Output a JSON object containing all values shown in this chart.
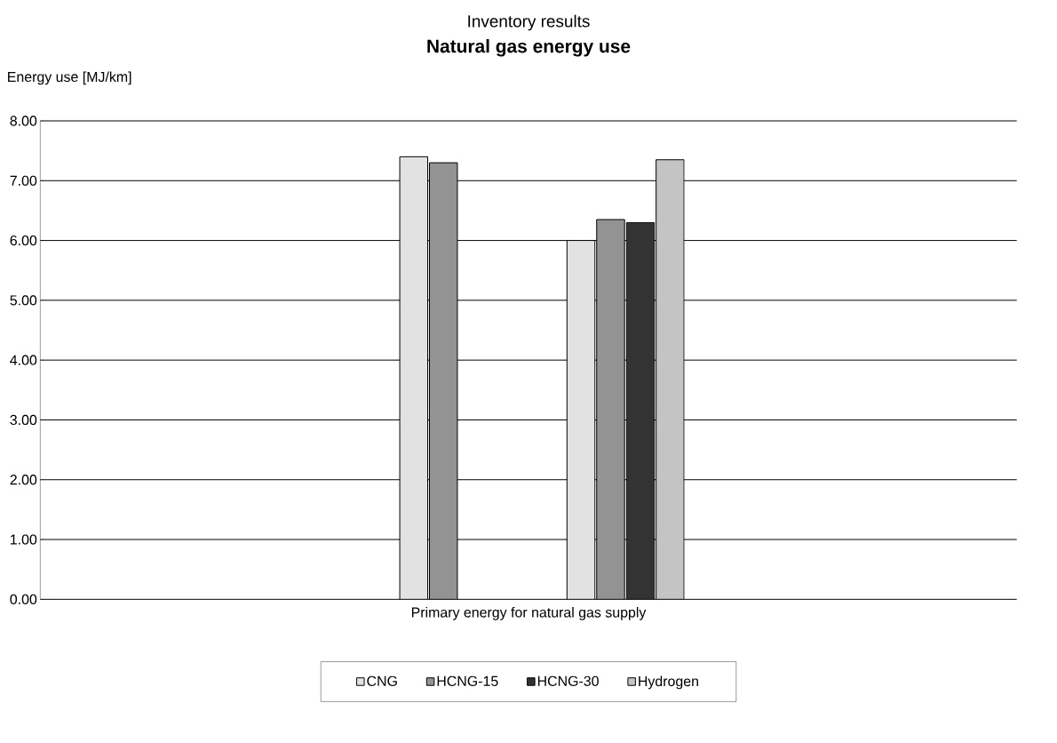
{
  "chart_data": {
    "type": "bar",
    "subtitle": "Inventory results",
    "title": "Natural gas energy use",
    "ylabel": "Energy use [MJ/km]",
    "xlabel": "Primary energy for natural gas supply",
    "categories": [
      null,
      null
    ],
    "series": [
      {
        "name": "CNG",
        "color": "#e2e2e2",
        "values": [
          7.4,
          6.0
        ]
      },
      {
        "name": "HCNG-15",
        "color": "#939393",
        "values": [
          7.3,
          6.35
        ]
      },
      {
        "name": "HCNG-30",
        "color": "#333333",
        "values": [
          null,
          6.3
        ]
      },
      {
        "name": "Hydrogen",
        "color": "#c4c4c4",
        "values": [
          null,
          7.35
        ]
      }
    ],
    "ylim": [
      0,
      8
    ],
    "yticks": [
      {
        "value": 0,
        "label": "0.00"
      },
      {
        "value": 1,
        "label": "1.00"
      },
      {
        "value": 2,
        "label": "2.00"
      },
      {
        "value": 3,
        "label": "3.00"
      },
      {
        "value": 4,
        "label": "4.00"
      },
      {
        "value": 5,
        "label": "5.00"
      },
      {
        "value": 6,
        "label": "6.00"
      },
      {
        "value": 7,
        "label": "7.00"
      },
      {
        "value": 8,
        "label": "8.00"
      }
    ],
    "grid": "y",
    "legend": "bottom"
  }
}
